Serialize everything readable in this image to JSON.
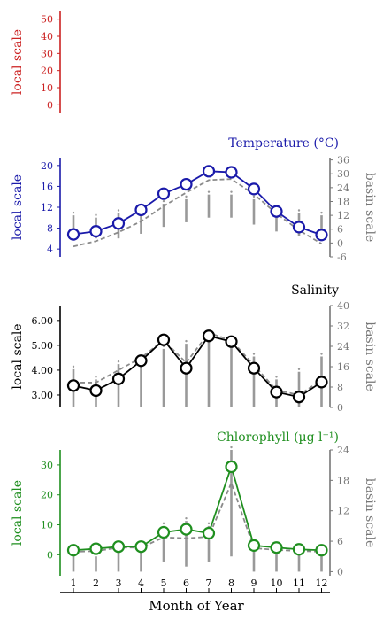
{
  "figure": {
    "xlabel": "Month of Year",
    "months": [
      "1",
      "2",
      "3",
      "4",
      "5",
      "6",
      "7",
      "8",
      "9",
      "10",
      "11",
      "12"
    ]
  },
  "chart_data": [
    {
      "type": "line",
      "title": "",
      "ylabel": "local scale",
      "color": "#cc2222",
      "y_ticks": [
        "0",
        "10",
        "20",
        "30",
        "40",
        "50"
      ],
      "ylim": [
        -5,
        55
      ],
      "series": []
    },
    {
      "type": "line",
      "title": "Temperature (°C)",
      "ylabel": "local scale",
      "ylabel_right": "basin scale",
      "color": "#1a1aaa",
      "y_ticks": [
        "4",
        "8",
        "12",
        "16",
        "20"
      ],
      "ylim": [
        2.5,
        21.5
      ],
      "y2_ticks": [
        "-6",
        "0",
        "6",
        "12",
        "18",
        "24",
        "30",
        "36"
      ],
      "y2lim": [
        -6,
        37
      ],
      "x": [
        1,
        2,
        3,
        4,
        5,
        6,
        7,
        8,
        9,
        10,
        11,
        12
      ],
      "series": [
        {
          "values": [
            6.8,
            7.4,
            8.9,
            11.5,
            14.6,
            16.4,
            18.9,
            18.7,
            15.5,
            11.2,
            8.2,
            6.7
          ]
        }
      ],
      "basin_mean": [
        4.5,
        5.5,
        7.2,
        9.3,
        12.2,
        14.8,
        17.2,
        17.4,
        14.5,
        10.8,
        7.6,
        5.0
      ],
      "basin_range": [
        [
          2,
          12
        ],
        [
          2,
          11
        ],
        [
          2,
          13
        ],
        [
          4,
          14
        ],
        [
          7,
          17
        ],
        [
          9,
          19
        ],
        [
          11,
          21
        ],
        [
          11,
          21
        ],
        [
          8,
          19
        ],
        [
          5,
          15
        ],
        [
          3,
          13
        ],
        [
          1,
          12
        ]
      ]
    },
    {
      "type": "line",
      "title": "Salinity",
      "ylabel": "local scale",
      "ylabel_right": "basin scale",
      "color": "#000000",
      "y_ticks": [
        "3.00",
        "4.00",
        "5.00",
        "6.00"
      ],
      "ylim": [
        2.5,
        6.6
      ],
      "y2_ticks": [
        "0",
        "8",
        "16",
        "24",
        "32",
        "40"
      ],
      "y2lim": [
        0,
        40
      ],
      "x": [
        1,
        2,
        3,
        4,
        5,
        6,
        7,
        8,
        9,
        10,
        11,
        12
      ],
      "series": [
        {
          "values": [
            3.38,
            3.18,
            3.65,
            4.38,
            5.22,
            4.08,
            5.38,
            5.15,
            4.08,
            3.12,
            2.92,
            3.52
          ]
        }
      ],
      "basin_mean": [
        3.5,
        3.5,
        4.0,
        4.5,
        5.2,
        4.3,
        5.5,
        5.2,
        4.2,
        3.2,
        3.0,
        3.6
      ],
      "basin_range": [
        [
          0,
          15
        ],
        [
          0,
          11
        ],
        [
          0,
          17
        ],
        [
          0,
          18
        ],
        [
          0,
          23
        ],
        [
          0,
          25
        ],
        [
          0,
          28
        ],
        [
          0,
          24
        ],
        [
          0,
          20
        ],
        [
          0,
          11
        ],
        [
          0,
          14
        ],
        [
          0,
          20
        ]
      ]
    },
    {
      "type": "line",
      "title": "Chlorophyll (µg l⁻¹)",
      "ylabel": "local scale",
      "ylabel_right": "basin scale",
      "color": "#1f8f1f",
      "y_ticks": [
        "0",
        "10",
        "20",
        "30"
      ],
      "ylim": [
        -7,
        35
      ],
      "y2_ticks": [
        "0",
        "6",
        "12",
        "18",
        "24"
      ],
      "y2lim": [
        -0.8,
        24
      ],
      "x": [
        1,
        2,
        3,
        4,
        5,
        6,
        7,
        8,
        9,
        10,
        11,
        12
      ],
      "series": [
        {
          "values": [
            1.5,
            2.0,
            2.7,
            2.7,
            7.5,
            8.5,
            7.2,
            29.4,
            3.1,
            2.4,
            1.8,
            1.5
          ]
        }
      ],
      "basin_mean": [
        1.0,
        1.2,
        2.4,
        2.4,
        5.8,
        5.5,
        6.0,
        24.0,
        2.2,
        1.6,
        1.3,
        1.0
      ],
      "basin_range": [
        [
          0,
          3
        ],
        [
          0,
          3
        ],
        [
          0,
          4
        ],
        [
          0,
          4
        ],
        [
          2,
          9
        ],
        [
          1,
          10
        ],
        [
          2,
          9
        ],
        [
          3,
          24
        ],
        [
          0,
          5
        ],
        [
          0,
          4
        ],
        [
          0,
          4
        ],
        [
          0,
          3
        ]
      ]
    }
  ]
}
